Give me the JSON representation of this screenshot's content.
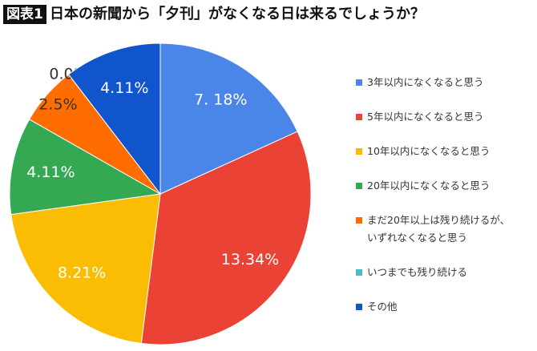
{
  "chart_data": {
    "type": "pie",
    "badge": "図表1",
    "title": "日本の新聞から「夕刊」がなくなる日は来るでしょうか？",
    "categories": [
      "3年以内になくなると思う",
      "5年以内になくなると思う",
      "10年以内になくなると思う",
      "20年以内になくなると思う",
      "まだ20年以上は残り続けるが、いずれなくなると思う",
      "いつまでも残り続ける",
      "その他"
    ],
    "values": [
      7.18,
      13.34,
      8.21,
      4.11,
      2.5,
      0,
      4.11
    ],
    "value_labels": [
      "7. 18%",
      "13.34%",
      "8.21%",
      "4.11%",
      "2.5%",
      "0.0%",
      "4.11%"
    ],
    "colors": [
      "#4a86e8",
      "#ea4335",
      "#fbbc04",
      "#34a853",
      "#ff6d01",
      "#46bdc6",
      "#1155cc"
    ]
  }
}
